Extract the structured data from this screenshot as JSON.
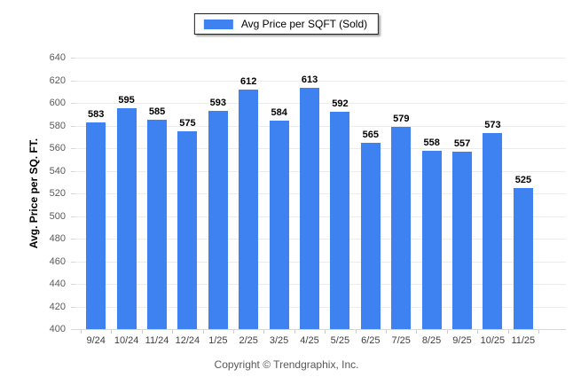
{
  "legend": {
    "label": "Avg Price per SQFT (Sold)",
    "swatch_color": "#3e82f2"
  },
  "footer": {
    "copyright": "Copyright © Trendgraphix, Inc."
  },
  "colors": {
    "bar": "#3e82f2",
    "grid": "#ececec",
    "baseline": "#d6d6d6",
    "tick": "#cccccc",
    "y_label": "#58595b",
    "x_label": "#404040",
    "footer_text": "#58595b"
  },
  "chart_data": {
    "type": "bar",
    "title": "",
    "xlabel": "",
    "ylabel": "Avg. Price per SQ. FT.",
    "categories": [
      "9/24",
      "10/24",
      "11/24",
      "12/24",
      "1/25",
      "2/25",
      "3/25",
      "4/25",
      "5/25",
      "6/25",
      "7/25",
      "8/25",
      "9/25",
      "10/25",
      "11/25"
    ],
    "values": [
      583,
      595,
      585,
      575,
      593,
      612,
      584,
      613,
      592,
      565,
      579,
      558,
      557,
      573,
      525
    ],
    "series_name": "Avg Price per SQFT (Sold)",
    "ylim": [
      400,
      640
    ],
    "ytick_step": 20,
    "grid": true,
    "legend_position": "top-center",
    "value_labels_shown": true
  }
}
